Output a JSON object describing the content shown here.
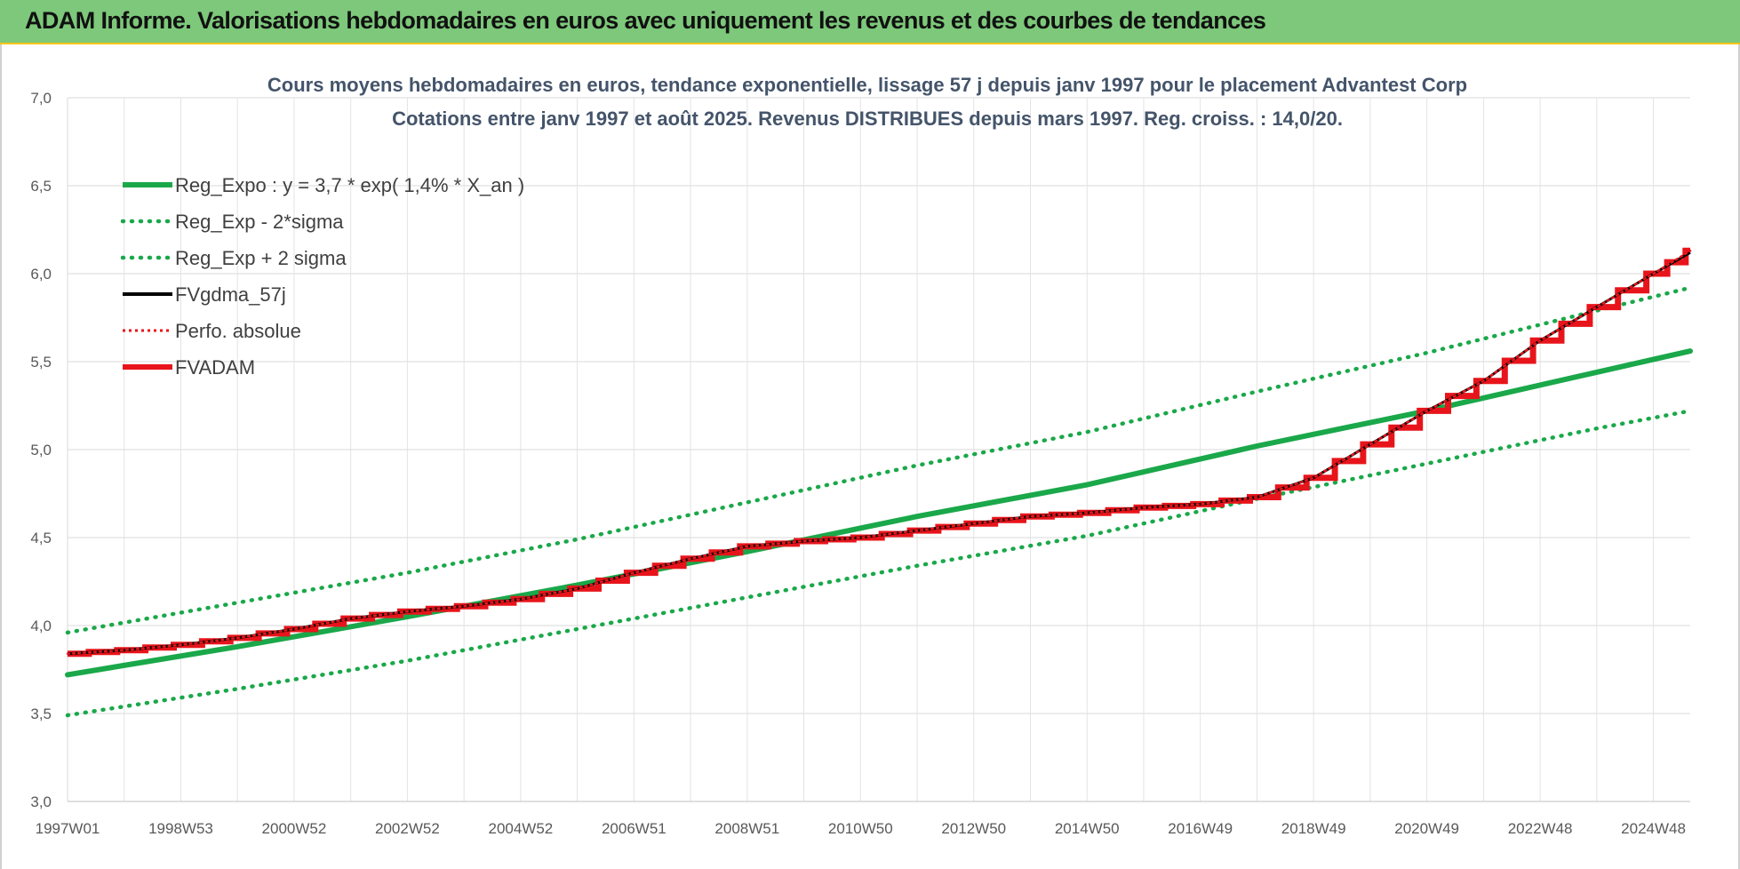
{
  "header": {
    "title": "ADAM Informe. Valorisations hebdomadaires en euros avec uniquement les revenus et des courbes de tendances"
  },
  "colors": {
    "banner": "#7dc87a",
    "trend": "#1aa84a",
    "fv": "#e8141b",
    "gdma": "#000000"
  },
  "chart_data": {
    "type": "line",
    "title": [
      "Cours moyens hebdomadaires en euros, tendance exponentielle, lissage 57 j depuis janv 1997 pour le placement Advantest Corp",
      "Cotations entre janv 1997 et août 2025.  Revenus DISTRIBUES depuis mars 1997. Reg. croiss. : 14,0/20."
    ],
    "xlabel": "",
    "ylabel": "",
    "ylim": [
      3.0,
      7.0
    ],
    "yticks": [
      "3,0",
      "3,5",
      "4,0",
      "4,5",
      "5,0",
      "5,5",
      "6,0",
      "6,5",
      "7,0"
    ],
    "xlim_years": [
      1997.0,
      2025.65
    ],
    "xticks": [
      {
        "label": "1997W01",
        "year": 1997.0
      },
      {
        "label": "1998W53",
        "year": 1999.0
      },
      {
        "label": "2000W52",
        "year": 2001.0
      },
      {
        "label": "2002W52",
        "year": 2003.0
      },
      {
        "label": "2004W52",
        "year": 2005.0
      },
      {
        "label": "2006W51",
        "year": 2007.0
      },
      {
        "label": "2008W51",
        "year": 2009.0
      },
      {
        "label": "2010W50",
        "year": 2011.0
      },
      {
        "label": "2012W50",
        "year": 2013.0
      },
      {
        "label": "2014W50",
        "year": 2015.0
      },
      {
        "label": "2016W49",
        "year": 2017.0
      },
      {
        "label": "2018W49",
        "year": 2019.0
      },
      {
        "label": "2020W49",
        "year": 2021.0
      },
      {
        "label": "2022W48",
        "year": 2023.0
      },
      {
        "label": "2024W48",
        "year": 2025.0
      }
    ],
    "grid": true,
    "legend_position": "top-left",
    "series": [
      {
        "name": "Reg_Expo : y = 3,7 * exp( 1,4% *  X_an )",
        "style": "solid",
        "color": "#1aa84a",
        "x": [
          1997.0,
          2000.0,
          2003.0,
          2006.0,
          2009.0,
          2012.0,
          2015.0,
          2018.0,
          2021.0,
          2024.0,
          2025.65
        ],
        "y": [
          3.72,
          3.88,
          4.05,
          4.23,
          4.42,
          4.62,
          4.8,
          5.02,
          5.22,
          5.44,
          5.56
        ]
      },
      {
        "name": "Reg_Exp - 2*sigma",
        "style": "dotted",
        "color": "#1aa84a",
        "x": [
          1997.0,
          2000.0,
          2003.0,
          2006.0,
          2009.0,
          2012.0,
          2015.0,
          2018.0,
          2021.0,
          2024.0,
          2025.65
        ],
        "y": [
          3.49,
          3.64,
          3.8,
          3.98,
          4.16,
          4.34,
          4.51,
          4.72,
          4.92,
          5.12,
          5.22
        ]
      },
      {
        "name": "Reg_Exp + 2 sigma",
        "style": "dotted",
        "color": "#1aa84a",
        "x": [
          1997.0,
          2000.0,
          2003.0,
          2006.0,
          2009.0,
          2012.0,
          2015.0,
          2018.0,
          2021.0,
          2024.0,
          2025.65
        ],
        "y": [
          3.96,
          4.13,
          4.3,
          4.49,
          4.7,
          4.91,
          5.1,
          5.33,
          5.55,
          5.79,
          5.92
        ]
      },
      {
        "name": "FVgdma_57j",
        "style": "solid",
        "color": "#000000",
        "x": [
          1997.0,
          1998.0,
          1999.0,
          2000.0,
          2001.0,
          2002.0,
          2003.0,
          2004.0,
          2005.0,
          2006.0,
          2007.0,
          2008.0,
          2009.0,
          2010.0,
          2011.0,
          2012.0,
          2013.0,
          2014.0,
          2015.0,
          2016.0,
          2017.0,
          2018.0,
          2019.0,
          2020.0,
          2021.0,
          2022.0,
          2023.0,
          2024.0,
          2025.0,
          2025.65
        ],
        "y": [
          3.84,
          3.86,
          3.89,
          3.93,
          3.98,
          4.04,
          4.08,
          4.11,
          4.15,
          4.21,
          4.3,
          4.38,
          4.45,
          4.48,
          4.5,
          4.54,
          4.58,
          4.62,
          4.64,
          4.67,
          4.69,
          4.73,
          4.84,
          5.03,
          5.22,
          5.39,
          5.62,
          5.81,
          6.0,
          6.12
        ]
      },
      {
        "name": "Perfo. absolue",
        "style": "dotted",
        "color": "#e8141b",
        "x": [
          1997.0,
          1998.0,
          1999.0,
          2000.0,
          2001.0,
          2002.0,
          2003.0,
          2004.0,
          2005.0,
          2006.0,
          2007.0,
          2008.0,
          2009.0,
          2010.0,
          2011.0,
          2012.0,
          2013.0,
          2014.0,
          2015.0,
          2016.0,
          2017.0,
          2018.0,
          2019.0,
          2020.0,
          2021.0,
          2022.0,
          2023.0,
          2024.0,
          2025.0,
          2025.65
        ],
        "y": [
          3.84,
          3.86,
          3.89,
          3.93,
          3.98,
          4.04,
          4.08,
          4.11,
          4.15,
          4.21,
          4.3,
          4.38,
          4.45,
          4.48,
          4.5,
          4.54,
          4.58,
          4.62,
          4.64,
          4.67,
          4.69,
          4.73,
          4.84,
          5.03,
          5.22,
          5.39,
          5.62,
          5.81,
          6.0,
          6.13
        ]
      },
      {
        "name": "FVADAM",
        "style": "step",
        "color": "#e8141b",
        "x": [
          1997.0,
          1998.0,
          1999.0,
          2000.0,
          2001.0,
          2002.0,
          2003.0,
          2004.0,
          2005.0,
          2006.0,
          2007.0,
          2008.0,
          2009.0,
          2010.0,
          2011.0,
          2012.0,
          2013.0,
          2014.0,
          2015.0,
          2016.0,
          2017.0,
          2018.0,
          2019.0,
          2020.0,
          2021.0,
          2022.0,
          2023.0,
          2024.0,
          2025.0,
          2025.65
        ],
        "y": [
          3.84,
          3.86,
          3.89,
          3.93,
          3.98,
          4.04,
          4.08,
          4.11,
          4.15,
          4.21,
          4.3,
          4.38,
          4.45,
          4.48,
          4.5,
          4.54,
          4.58,
          4.62,
          4.64,
          4.67,
          4.69,
          4.73,
          4.84,
          5.03,
          5.22,
          5.39,
          5.62,
          5.81,
          6.0,
          6.13
        ]
      }
    ]
  }
}
